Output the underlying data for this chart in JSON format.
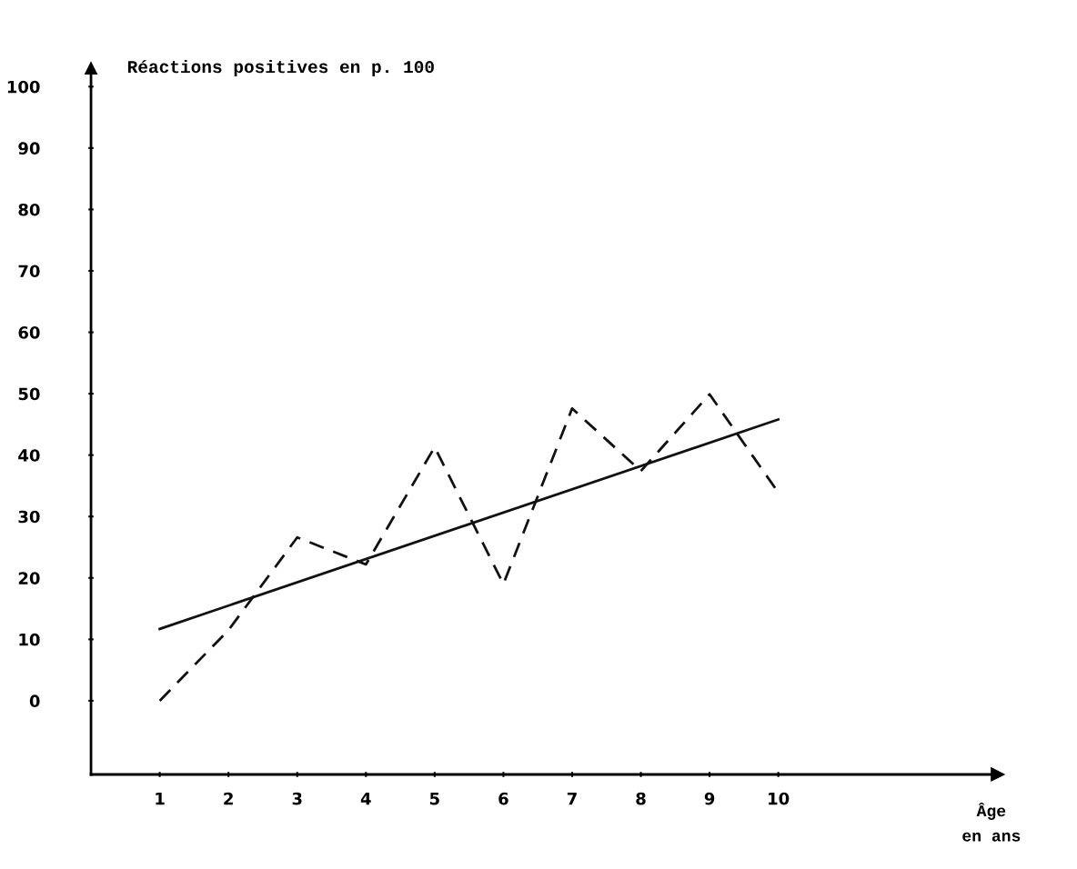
{
  "chart_data": {
    "type": "line",
    "ylabel": "Réactions positives en p. 100",
    "xlabel": "Âge\nen ans",
    "x": [
      1,
      2,
      3,
      4,
      5,
      6,
      7,
      8,
      9,
      10
    ],
    "series": [
      {
        "color": "#111111",
        "line_style": "dashed",
        "values": [
          0,
          11.5,
          26.6,
          22.2,
          41.3,
          19,
          47.6,
          37.4,
          49.9,
          33.9
        ]
      },
      {
        "color": "#111111",
        "line_style": "solid",
        "x": [
          1,
          10
        ],
        "values": [
          11.7,
          45.8
        ]
      }
    ],
    "xlim": [
      0,
      13.1
    ],
    "xticks": [
      1,
      2,
      3,
      4,
      5,
      6,
      7,
      8,
      9,
      10
    ],
    "ylim": [
      -12,
      103
    ],
    "yticks": [
      0,
      10,
      20,
      30,
      40,
      50,
      60,
      70,
      80,
      90,
      100
    ],
    "grid": false,
    "legend": false,
    "marker": "none"
  }
}
